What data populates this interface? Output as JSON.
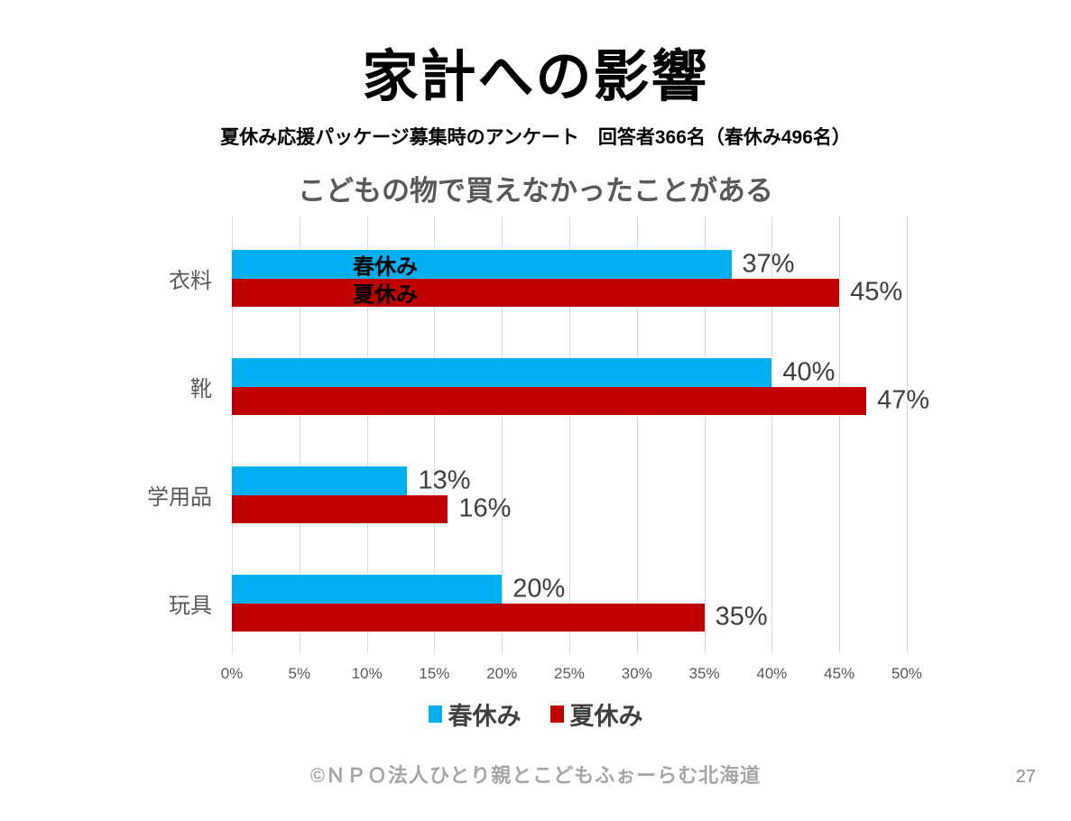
{
  "slide": {
    "title": "家計への影響",
    "subtitle": "夏休み応援パッケージ募集時のアンケート　回答者366名（春休み496名）",
    "footer": "©ＮＰＯ法人ひとり親とこどもふぉーらむ北海道",
    "page_number": "27"
  },
  "chart_data": {
    "type": "bar",
    "orientation": "horizontal",
    "title": "こどもの物で買えなかったことがある",
    "categories": [
      "衣料",
      "靴",
      "学用品",
      "玩具"
    ],
    "series": [
      {
        "name": "春休み",
        "color": "#00b0f0",
        "values": [
          37,
          40,
          13,
          20
        ]
      },
      {
        "name": "夏休み",
        "color": "#c00000",
        "values": [
          45,
          47,
          16,
          35
        ]
      }
    ],
    "value_suffix": "%",
    "xlim": [
      0,
      50
    ],
    "x_tick_step": 5,
    "x_ticks": [
      "0%",
      "5%",
      "10%",
      "15%",
      "20%",
      "25%",
      "30%",
      "35%",
      "40%",
      "45%",
      "50%"
    ],
    "grid": true,
    "gridline_color": "#d9d9d9",
    "legend_position": "bottom",
    "first_category_bar_annotations": [
      "春休み",
      "夏休み"
    ]
  }
}
